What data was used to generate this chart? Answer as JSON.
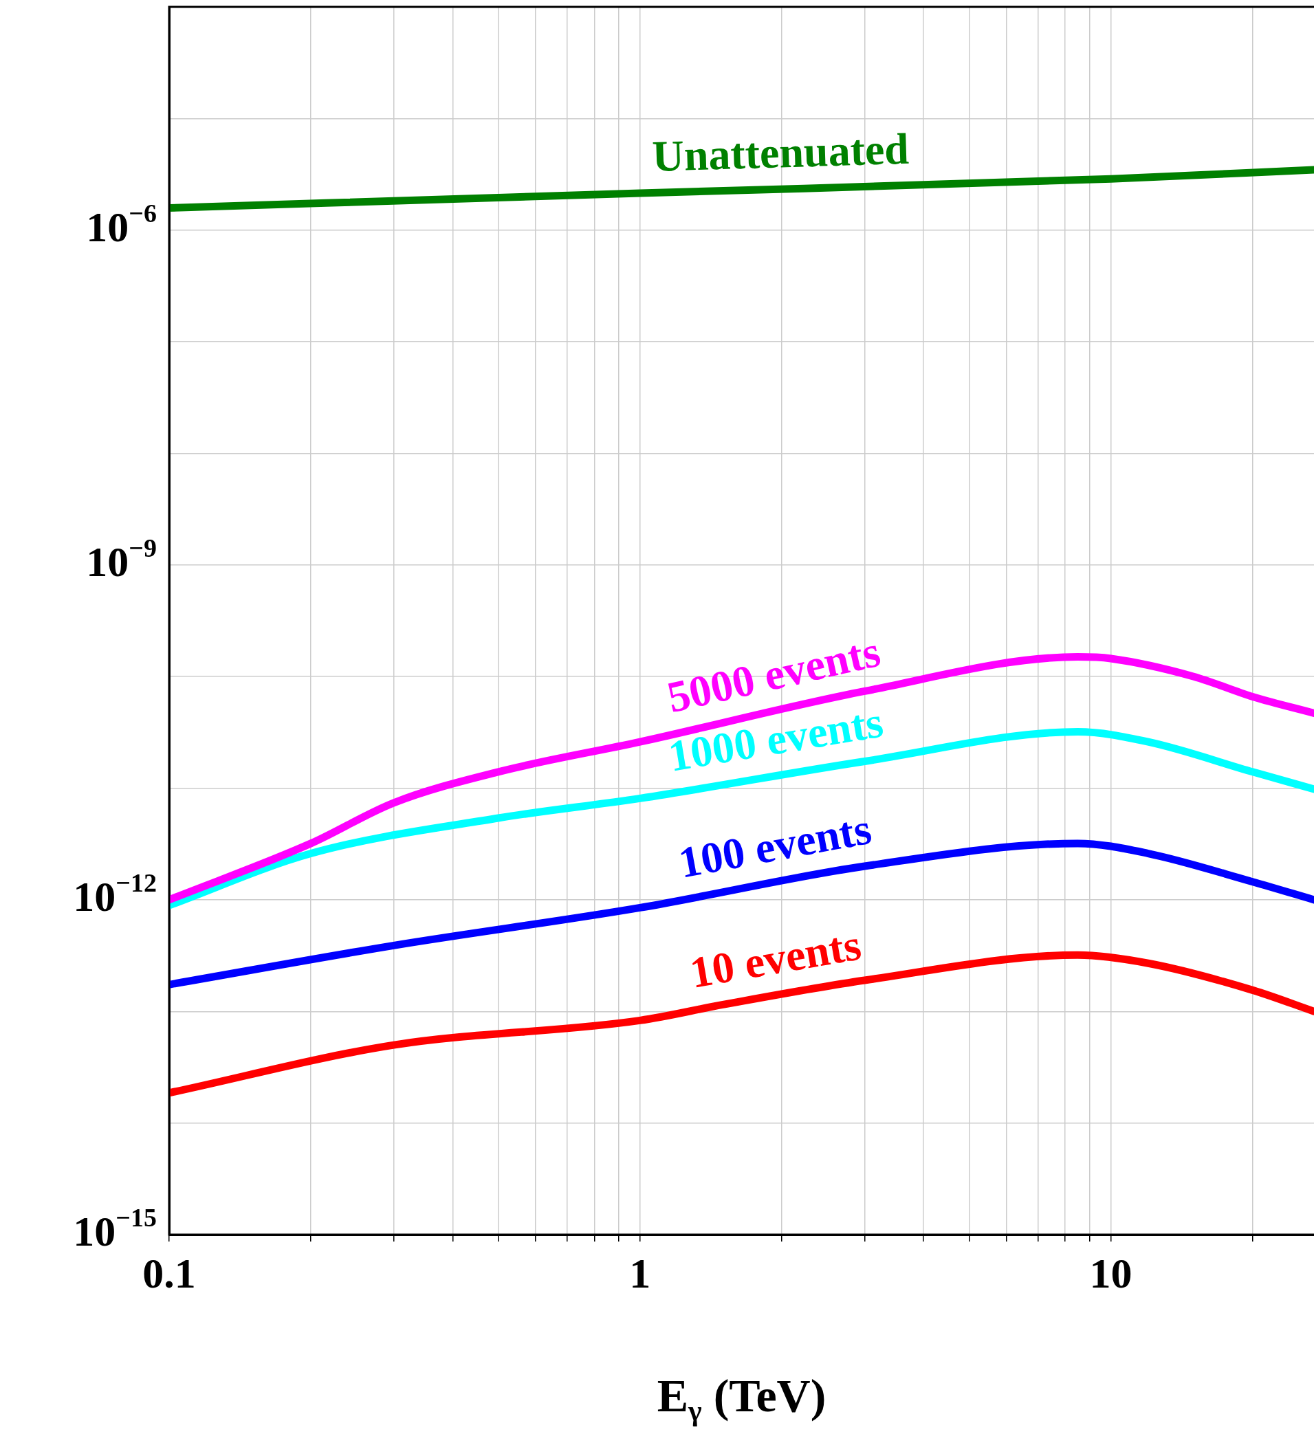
{
  "chart_data": {
    "type": "line",
    "xlabel": "E$_{γ}$ (TeV)",
    "log": "xy",
    "grid": true,
    "legend": false,
    "marker": "none",
    "line_style": "solid",
    "xlim": [
      0.1,
      27
    ],
    "ylim": [
      1e-15,
      0.0001
    ],
    "xticks": [
      0.1,
      {
        "value": 0.2,
        "label": null
      },
      {
        "value": 0.3,
        "label": null
      },
      {
        "value": 0.4,
        "label": null
      },
      {
        "value": 0.5,
        "label": null
      },
      {
        "value": 0.6,
        "label": null
      },
      {
        "value": 0.7,
        "label": null
      },
      {
        "value": 0.8,
        "label": null
      },
      {
        "value": 0.9,
        "label": null
      },
      1,
      {
        "value": 2,
        "label": null
      },
      {
        "value": 3,
        "label": null
      },
      {
        "value": 4,
        "label": null
      },
      {
        "value": 5,
        "label": null
      },
      {
        "value": 6,
        "label": null
      },
      {
        "value": 7,
        "label": null
      },
      {
        "value": 8,
        "label": null
      },
      {
        "value": 9,
        "label": null
      },
      10,
      {
        "value": 20,
        "label": null
      }
    ],
    "yticks": [
      {
        "value": 1e-15,
        "label": "10$^{−15}$"
      },
      {
        "value": 1e-14,
        "label": null
      },
      {
        "value": 1e-13,
        "label": null
      },
      {
        "value": 1e-12,
        "label": "10$^{−12}$"
      },
      {
        "value": 1e-11,
        "label": null
      },
      {
        "value": 1e-10,
        "label": null
      },
      {
        "value": 1e-09,
        "label": "10$^{−9}$"
      },
      {
        "value": 1e-08,
        "label": null
      },
      {
        "value": 1e-07,
        "label": null
      },
      {
        "value": 1e-06,
        "label": "10$^{−6}$"
      },
      {
        "value": 1e-05,
        "label": null
      },
      {
        "value": 0.0001,
        "label": null
      }
    ],
    "series": [
      {
        "name": "Unattenuated",
        "color": "#008000",
        "x": [
          0.1,
          1,
          10,
          27
        ],
        "values": [
          1.58e-06,
          2.14e-06,
          2.88e-06,
          3.47e-06
        ]
      },
      {
        "name": "5000 events",
        "color": "#ff00ff",
        "x": [
          0.1,
          0.2,
          0.3,
          0.5,
          1,
          3,
          8.5,
          10,
          15,
          20,
          27
        ],
        "values": [
          1e-12,
          3.2e-12,
          7.4e-12,
          1.4e-11,
          2.6e-11,
          7.4e-11,
          1.5e-10,
          1.45e-10,
          1e-10,
          6.6e-11,
          4.7e-11
        ]
      },
      {
        "name": "1000 events",
        "color": "#00ffff",
        "x": [
          0.1,
          0.2,
          0.5,
          1,
          3,
          8.5,
          12,
          20,
          27
        ],
        "values": [
          8.9e-13,
          2.6e-12,
          5.4e-12,
          8.1e-12,
          1.74e-11,
          3.2e-11,
          2.6e-11,
          1.4e-11,
          9.8e-12
        ]
      },
      {
        "name": "100 events",
        "color": "#0000ff",
        "x": [
          0.1,
          0.3,
          1,
          3,
          8.5,
          12,
          20,
          27
        ],
        "values": [
          1.74e-13,
          3.9e-13,
          8.5e-13,
          2e-12,
          3.2e-12,
          2.6e-12,
          1.45e-12,
          1e-12
        ]
      },
      {
        "name": "10 events",
        "color": "#ff0000",
        "x": [
          0.1,
          0.3,
          1,
          1.5,
          3,
          8.5,
          12,
          20,
          27
        ],
        "values": [
          1.86e-14,
          5e-14,
          8.3e-14,
          1.15e-13,
          1.9e-13,
          3.2e-13,
          2.7e-13,
          1.55e-13,
          1e-13
        ]
      }
    ]
  }
}
